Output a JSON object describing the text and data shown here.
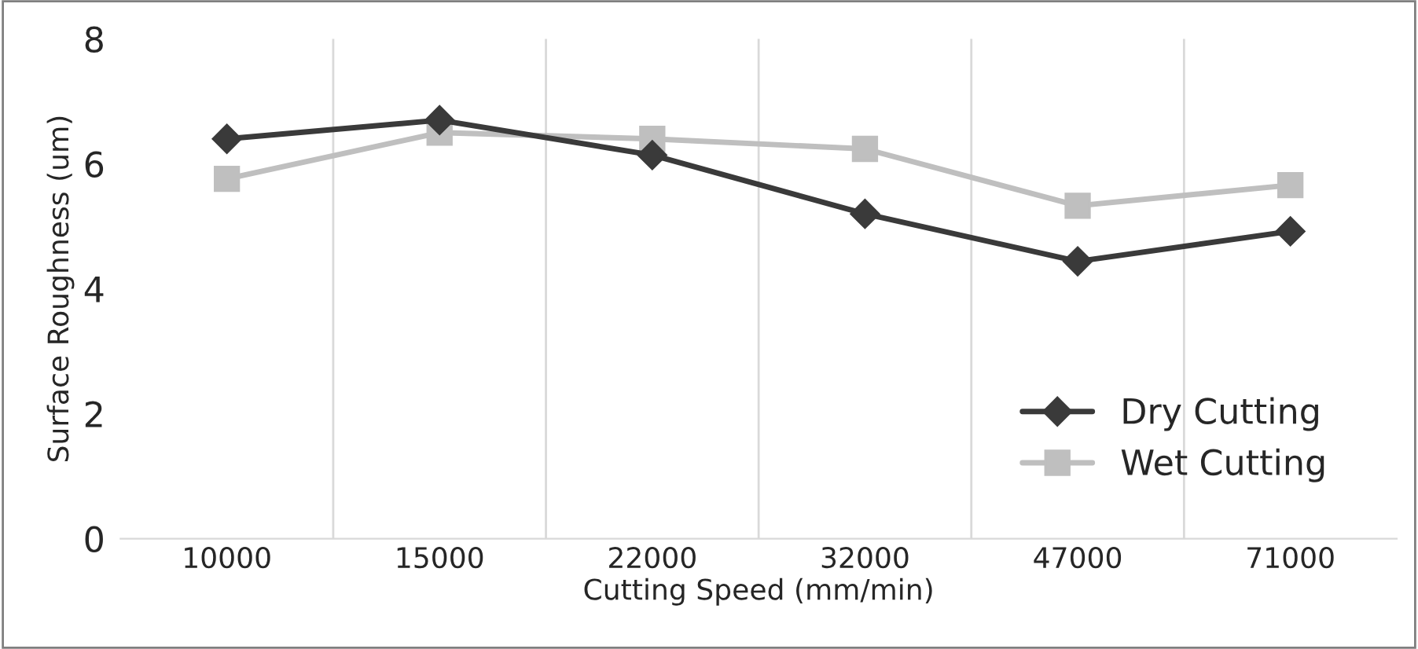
{
  "chart_data": {
    "type": "line",
    "xlabel": "Cutting Speed (mm/min)",
    "ylabel": "Surface Roughness (um)",
    "categories": [
      "10000",
      "15000",
      "22000",
      "32000",
      "47000",
      "71000"
    ],
    "series": [
      {
        "name": "Dry Cutting",
        "color": "#3a3a3a",
        "marker": "diamond",
        "values": [
          6.4,
          6.7,
          6.14,
          5.2,
          4.44,
          4.92
        ]
      },
      {
        "name": "Wet Cutting",
        "color": "#bfbfbf",
        "marker": "square",
        "values": [
          5.76,
          6.5,
          6.4,
          6.24,
          5.33,
          5.66
        ]
      }
    ],
    "ylim": [
      0,
      8
    ],
    "yticks": [
      0,
      2,
      4,
      6,
      8
    ],
    "grid": "x",
    "legend": "bottom right",
    "line_style": "solid"
  }
}
